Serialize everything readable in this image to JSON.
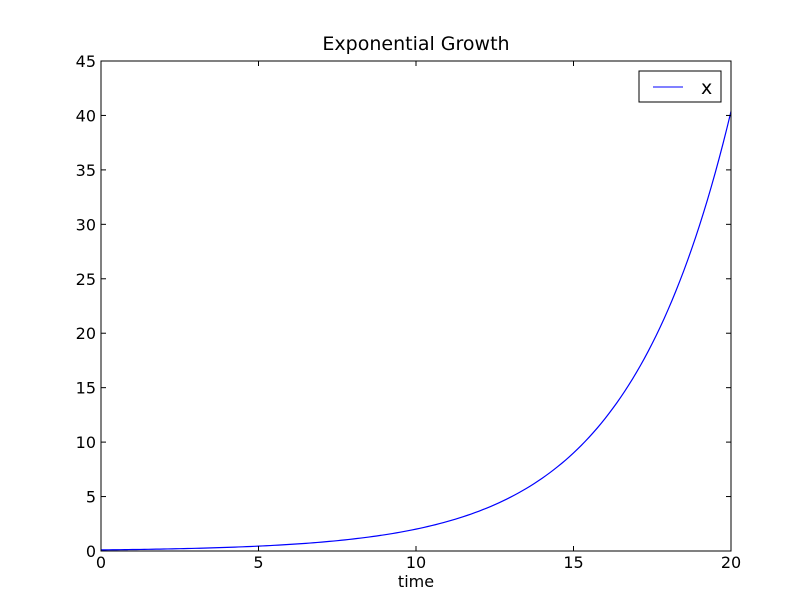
{
  "chart_data": {
    "type": "line",
    "title": "Exponential Growth",
    "xlabel": "time",
    "ylabel": "",
    "xlim": [
      0,
      20
    ],
    "ylim": [
      0,
      45
    ],
    "x_ticks": [
      "0",
      "5",
      "10",
      "15",
      "20"
    ],
    "y_ticks": [
      "0",
      "5",
      "10",
      "15",
      "20",
      "25",
      "30",
      "35",
      "40",
      "45"
    ],
    "grid": false,
    "legend_position": "top-right",
    "series": [
      {
        "name": "x",
        "color": "#0000ff",
        "x": [
          0,
          1,
          2,
          3,
          4,
          5,
          6,
          7,
          8,
          9,
          10,
          11,
          12,
          13,
          14,
          15,
          16,
          17,
          18,
          19,
          20
        ],
        "y": [
          0.1,
          0.135,
          0.182,
          0.246,
          0.332,
          0.448,
          0.605,
          0.817,
          1.103,
          1.488,
          2.009,
          2.712,
          3.661,
          4.942,
          6.672,
          9.006,
          12.16,
          16.41,
          22.15,
          29.9,
          40.37
        ]
      }
    ]
  }
}
